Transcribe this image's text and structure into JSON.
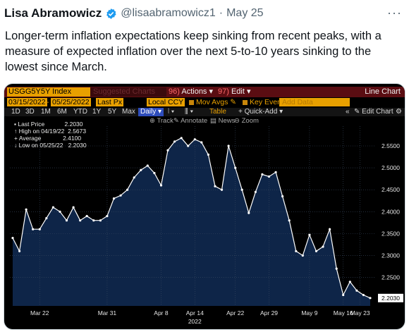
{
  "tweet": {
    "name": "Lisa Abramowicz",
    "handle": "@lisaabramowicz1",
    "date": "May 25",
    "text": "Longer-term inflation expectations keep sinking from recent peaks, with a measure of expected inflation over the next 5-to-10 years sinking to the lowest since March."
  },
  "terminal": {
    "ticker": "USGG5Y5Y Index",
    "suggested": "Suggested Charts",
    "actions_num": "96)",
    "actions": "Actions",
    "edit_num": "97)",
    "edit": "Edit",
    "chart_title": "Line Chart",
    "date_from": "03/15/2022",
    "date_to": "05/25/2022",
    "last_px": "Last Px",
    "ccy": "Local CCY",
    "mov_avgs": "Mov Avgs",
    "key_events": "Key Events",
    "add_data": "Add Data",
    "periods": [
      "1D",
      "3D",
      "1M",
      "6M",
      "YTD",
      "1Y",
      "5Y",
      "Max"
    ],
    "daily": "Daily",
    "table": "Table",
    "quick_add": "Quick-Add",
    "edit_chart": "Edit Chart",
    "tools": [
      "Track",
      "Annotate",
      "News",
      "Zoom"
    ],
    "colors": {
      "bar_maroon": "#5a0d12",
      "amber": "#e8a000",
      "plot_fill": "#0e2548",
      "line": "#ffffff"
    }
  },
  "legend": {
    "last_label": "Last Price",
    "last_value": "2.2030",
    "high_label": "High on 04/19/22",
    "high_value": "2.5673",
    "avg_label": "Average",
    "avg_value": "2.4100",
    "low_label": "Low on 05/25/22",
    "low_value": "2.2030"
  },
  "chart_data": {
    "type": "area",
    "series": [
      {
        "name": "Last Price",
        "values": [
          2.34,
          2.31,
          2.405,
          2.36,
          2.36,
          2.385,
          2.41,
          2.4,
          2.38,
          2.41,
          2.38,
          2.39,
          2.38,
          2.38,
          2.39,
          2.43,
          2.437,
          2.45,
          2.478,
          2.495,
          2.505,
          2.488,
          2.46,
          2.54,
          2.56,
          2.568,
          2.55,
          2.565,
          2.558,
          2.53,
          2.458,
          2.45,
          2.55,
          2.5,
          2.45,
          2.397,
          2.445,
          2.485,
          2.48,
          2.49,
          2.435,
          2.38,
          2.31,
          2.3,
          2.347,
          2.31,
          2.32,
          2.36,
          2.27,
          2.21,
          2.24,
          2.22,
          2.21,
          2.203
        ]
      }
    ],
    "x_tick_labels": [
      "Mar 22",
      "Mar 31",
      "Apr 8",
      "Apr 14",
      "Apr 22",
      "Apr 29",
      "May 9",
      "May 16",
      "May 23"
    ],
    "x_year_label": "2022",
    "y_ticks": [
      2.25,
      2.3,
      2.35,
      2.4,
      2.45,
      2.5,
      2.55
    ],
    "y_tick_labels": [
      "2.2500",
      "2.3000",
      "2.3500",
      "2.4000",
      "2.4500",
      "2.5000",
      "2.5500"
    ],
    "last_tag": "2.2030",
    "ylim": [
      2.185,
      2.595
    ],
    "grid": true
  }
}
